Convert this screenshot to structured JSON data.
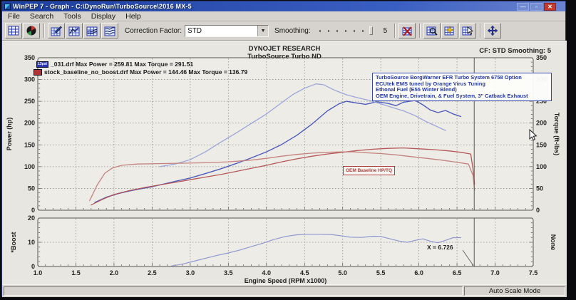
{
  "window": {
    "title": "WinPEP 7 - Graph - C:\\DynoRun\\TurboSource\\2016 MX-5"
  },
  "icons": {
    "minimize": "—",
    "maximize": "▫",
    "close": "✕",
    "dropdown_arrow": "▼"
  },
  "menu": {
    "items": [
      "File",
      "Search",
      "Tools",
      "Display",
      "Help"
    ]
  },
  "toolbar": {
    "correction_factor_label": "Correction Factor:",
    "correction_factor_value": "STD",
    "smoothing_label": "Smoothing:",
    "smoothing_value": "5"
  },
  "chart_header": {
    "company": "DYNOJET RESEARCH",
    "subtitle": "TurboSource Turbo ND",
    "right_info": "CF: STD  Smoothing: 5"
  },
  "legend": {
    "entries": [
      {
        "swatch_label": "13psi",
        "swatch_color": "#2a36b0",
        "label": "_031.drf Max Power = 259.81 Max Torque = 291.51",
        "max_power": 259.81,
        "max_torque": 291.51
      },
      {
        "swatch_label": "",
        "swatch_color": "#b03434",
        "label": "stock_baseline_no_boost.drf Max Power = 144.46 Max Torque = 136.79",
        "max_power": 144.46,
        "max_torque": 136.79
      }
    ]
  },
  "info_box": {
    "lines": [
      "TurboSource BorgWarner EFR Turbo System 6758 Option",
      "ECUtek EMS tuned by Orange Virus Tuning",
      "Ethonal Fuel (E55 Winter Blend)",
      "OEM Engine, Drivetrain, & Fuel System, 3\" Catback Exhaust"
    ]
  },
  "annotations": {
    "oem_label": "OEM Baseline HP/TQ",
    "cursor_label": "X = 6.726"
  },
  "status_bar": {
    "right": "Auto Scale Mode"
  },
  "colors": {
    "titlebar": "#1d3f9e",
    "close_button": "#c23b2e",
    "run_blue_power": "#4553b8",
    "run_blue_torque": "#98a2d8",
    "run_red_power": "#b25050",
    "run_red_torque": "#c27d78",
    "info_text": "#2438a8",
    "oem_text": "#ab3d3d"
  },
  "chart_data": {
    "type": "line",
    "title": "TurboSource Turbo ND",
    "xlabel": "Engine Speed (RPM x1000)",
    "x_range": [
      1.0,
      7.5
    ],
    "x_tick_step": 0.5,
    "cursor_x": 6.726,
    "main_plot": {
      "ylabel_left": "Power (hp)",
      "ylabel_right": "Torque (ft-lbs)",
      "y_range": [
        0,
        350
      ],
      "y_ticks": [
        0,
        50,
        100,
        150,
        200,
        250,
        300,
        350
      ],
      "y_minor_step": 10,
      "right_tick_labels": true,
      "series": [
        {
          "name": "13psi_031.drf Power (hp)",
          "color": "#4553b8",
          "width": 1.4,
          "points": [
            [
              1.75,
              18
            ],
            [
              1.9,
              30
            ],
            [
              2.05,
              38
            ],
            [
              2.2,
              44
            ],
            [
              2.35,
              49
            ],
            [
              2.5,
              54
            ],
            [
              2.65,
              60
            ],
            [
              2.8,
              66
            ],
            [
              3.0,
              74
            ],
            [
              3.2,
              84
            ],
            [
              3.4,
              95
            ],
            [
              3.6,
              107
            ],
            [
              3.8,
              120
            ],
            [
              4.0,
              134
            ],
            [
              4.2,
              151
            ],
            [
              4.4,
              172
            ],
            [
              4.6,
              198
            ],
            [
              4.8,
              228
            ],
            [
              4.95,
              244
            ],
            [
              5.05,
              250
            ],
            [
              5.15,
              247
            ],
            [
              5.3,
              243
            ],
            [
              5.45,
              249
            ],
            [
              5.6,
              245
            ],
            [
              5.7,
              240
            ],
            [
              5.8,
              248
            ],
            [
              5.95,
              252
            ],
            [
              6.05,
              242
            ],
            [
              6.15,
              230
            ],
            [
              6.25,
              224
            ],
            [
              6.35,
              229
            ],
            [
              6.45,
              221
            ],
            [
              6.55,
              215
            ]
          ]
        },
        {
          "name": "13psi_031.drf Torque (ft-lbs)",
          "color": "#98a2d8",
          "width": 1.3,
          "points": [
            [
              2.6,
              100
            ],
            [
              2.8,
              106
            ],
            [
              3.0,
              116
            ],
            [
              3.2,
              134
            ],
            [
              3.4,
              156
            ],
            [
              3.6,
              177
            ],
            [
              3.8,
              199
            ],
            [
              4.0,
              221
            ],
            [
              4.2,
              247
            ],
            [
              4.35,
              266
            ],
            [
              4.5,
              280
            ],
            [
              4.65,
              290
            ],
            [
              4.75,
              288
            ],
            [
              4.9,
              275
            ],
            [
              5.05,
              265
            ],
            [
              5.2,
              258
            ],
            [
              5.35,
              252
            ],
            [
              5.5,
              244
            ],
            [
              5.65,
              236
            ],
            [
              5.8,
              228
            ],
            [
              5.95,
              217
            ],
            [
              6.1,
              203
            ],
            [
              6.25,
              191
            ],
            [
              6.35,
              183
            ]
          ]
        },
        {
          "name": "stock_baseline_no_boost.drf Power (hp)",
          "color": "#b25050",
          "width": 1.3,
          "points": [
            [
              1.7,
              12
            ],
            [
              1.85,
              25
            ],
            [
              2.0,
              36
            ],
            [
              2.2,
              45
            ],
            [
              2.4,
              52
            ],
            [
              2.6,
              58
            ],
            [
              2.8,
              64
            ],
            [
              3.0,
              70
            ],
            [
              3.2,
              76
            ],
            [
              3.4,
              82
            ],
            [
              3.6,
              89
            ],
            [
              3.8,
              96
            ],
            [
              4.0,
              103
            ],
            [
              4.2,
              111
            ],
            [
              4.4,
              118
            ],
            [
              4.6,
              124
            ],
            [
              4.8,
              129
            ],
            [
              5.0,
              133
            ],
            [
              5.2,
              137
            ],
            [
              5.4,
              140
            ],
            [
              5.6,
              142
            ],
            [
              5.8,
              143
            ],
            [
              6.0,
              141
            ],
            [
              6.2,
              139
            ],
            [
              6.4,
              136
            ],
            [
              6.55,
              133
            ],
            [
              6.68,
              129
            ],
            [
              6.71,
              95
            ],
            [
              6.73,
              60
            ]
          ]
        },
        {
          "name": "stock_baseline_no_boost.drf Torque (ft-lbs)",
          "color": "#c27d78",
          "width": 1.3,
          "points": [
            [
              1.68,
              22
            ],
            [
              1.78,
              58
            ],
            [
              1.88,
              85
            ],
            [
              1.98,
              97
            ],
            [
              2.1,
              103
            ],
            [
              2.3,
              106
            ],
            [
              2.6,
              107
            ],
            [
              2.9,
              108
            ],
            [
              3.2,
              109
            ],
            [
              3.5,
              111
            ],
            [
              3.8,
              115
            ],
            [
              4.0,
              119
            ],
            [
              4.2,
              124
            ],
            [
              4.4,
              128
            ],
            [
              4.6,
              131
            ],
            [
              4.8,
              133
            ],
            [
              5.0,
              134
            ],
            [
              5.15,
              134
            ],
            [
              5.3,
              132
            ],
            [
              5.5,
              130
            ],
            [
              5.7,
              127
            ],
            [
              5.9,
              123
            ],
            [
              6.1,
              119
            ],
            [
              6.3,
              115
            ],
            [
              6.5,
              110
            ],
            [
              6.65,
              106
            ],
            [
              6.71,
              80
            ],
            [
              6.73,
              46
            ]
          ]
        }
      ]
    },
    "boost_plot": {
      "ylabel_left": "*Boost",
      "ylabel_right": "None",
      "y_range": [
        0,
        20
      ],
      "y_ticks": [
        0,
        10,
        20
      ],
      "y_minor_step": 2,
      "right_tick_labels": false,
      "series": [
        {
          "name": "13psi_031.drf Boost (psi)",
          "color": "#8a93cc",
          "width": 1.2,
          "points": [
            [
              2.75,
              0.2
            ],
            [
              2.9,
              1
            ],
            [
              3.05,
              2.2
            ],
            [
              3.2,
              3.4
            ],
            [
              3.35,
              4.6
            ],
            [
              3.5,
              5.6
            ],
            [
              3.65,
              6.8
            ],
            [
              3.8,
              8.2
            ],
            [
              3.95,
              9.6
            ],
            [
              4.1,
              11.2
            ],
            [
              4.25,
              12.4
            ],
            [
              4.4,
              13.1
            ],
            [
              4.55,
              13.3
            ],
            [
              4.7,
              13.3
            ],
            [
              4.85,
              13.2
            ],
            [
              5.0,
              12.6
            ],
            [
              5.1,
              12.1
            ],
            [
              5.25,
              12.0
            ],
            [
              5.4,
              12.5
            ],
            [
              5.5,
              12.4
            ],
            [
              5.6,
              11.6
            ],
            [
              5.75,
              10.4
            ],
            [
              5.85,
              10.0
            ],
            [
              5.95,
              10.8
            ],
            [
              6.05,
              11.4
            ],
            [
              6.15,
              10.4
            ],
            [
              6.25,
              9.8
            ],
            [
              6.35,
              10.8
            ],
            [
              6.45,
              11.9
            ],
            [
              6.55,
              11.9
            ]
          ]
        }
      ]
    }
  }
}
